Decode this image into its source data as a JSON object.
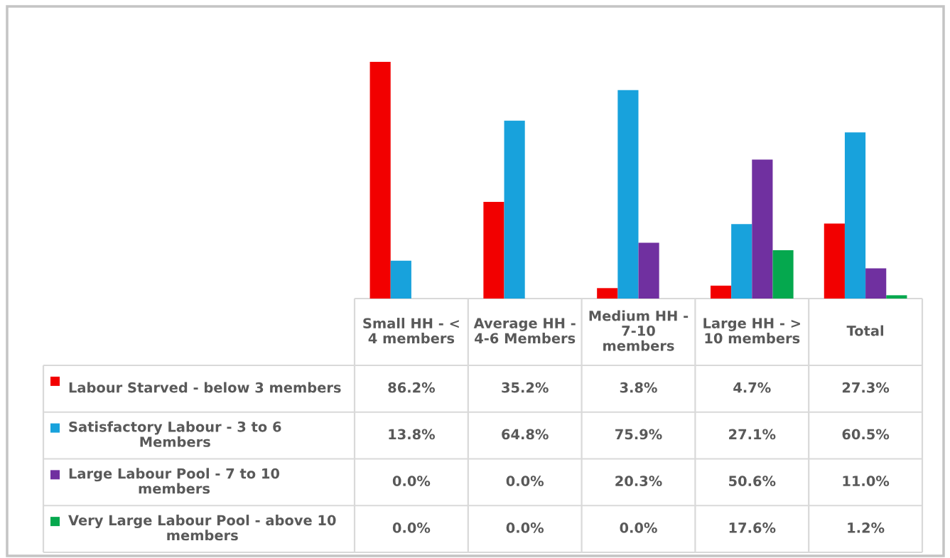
{
  "chart_data": {
    "type": "bar",
    "categories": [
      "Small HH - < 4 members",
      "Average HH - 4-6 Members",
      "Medium HH - 7-10 members",
      "Large HH - > 10 members",
      "Total"
    ],
    "series": [
      {
        "name": "Labour Starved - below 3 members",
        "color": "#f20000",
        "values": [
          86.2,
          35.2,
          3.8,
          4.7,
          27.3
        ],
        "value_labels": [
          "86.2%",
          "35.2%",
          "3.8%",
          "4.7%",
          "27.3%"
        ]
      },
      {
        "name": "Satisfactory Labour - 3 to 6 Members",
        "color": "#18a2dc",
        "values": [
          13.8,
          64.8,
          75.9,
          27.1,
          60.5
        ],
        "value_labels": [
          "13.8%",
          "64.8%",
          "75.9%",
          "27.1%",
          "60.5%"
        ]
      },
      {
        "name": "Large Labour Pool - 7 to 10 members",
        "color": "#7030a0",
        "values": [
          0.0,
          0.0,
          20.3,
          50.6,
          11.0
        ],
        "value_labels": [
          "0.0%",
          "0.0%",
          "20.3%",
          "50.6%",
          "11.0%"
        ]
      },
      {
        "name": "Very Large Labour Pool - above 10 members",
        "color": "#05a84e",
        "values": [
          0.0,
          0.0,
          0.0,
          17.6,
          1.2
        ],
        "value_labels": [
          "0.0%",
          "0.0%",
          "0.0%",
          "17.6%",
          "1.2%"
        ]
      }
    ],
    "legend": "bottom"
  }
}
